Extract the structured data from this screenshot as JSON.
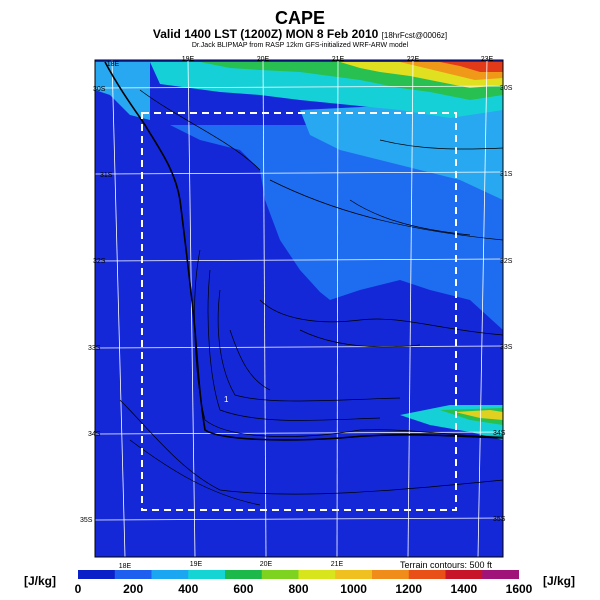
{
  "header": {
    "title": "CAPE",
    "valid_line": "Valid 1400 LST (1200Z) MON 8 Feb 2010",
    "valid_suffix": "[18hrFcst@0006z]",
    "credit_line": "Dr.Jack BLIPMAP from RASP 12km GFS-initialized WRF-ARW model"
  },
  "map": {
    "lon_labels_top": [
      "18E",
      "19E",
      "20E",
      "21E",
      "22E",
      "23E"
    ],
    "lon_labels_bottom": [
      "18E",
      "19E",
      "20E",
      "21E"
    ],
    "lat_labels_right": [
      "30S",
      "31S",
      "32S",
      "33S",
      "34S",
      "35S"
    ],
    "lat_labels_left": [
      "30S",
      "31S",
      "32S",
      "33S",
      "34S",
      "35S"
    ],
    "point_marker": "1",
    "terrain_note": "Terrain contours: 500 ft"
  },
  "colorbar": {
    "unit_left": "[J/kg]",
    "unit_right": "[J/kg]",
    "ticks": [
      "0",
      "200",
      "400",
      "600",
      "800",
      "1000",
      "1200",
      "1400",
      "1600"
    ],
    "colors": [
      "#0a1fc8",
      "#1f5ff0",
      "#1aa6f0",
      "#14d4d4",
      "#1db84a",
      "#7ed321",
      "#d8e41c",
      "#f0c020",
      "#f08c1a",
      "#e85018",
      "#c81428",
      "#a0147a"
    ]
  }
}
